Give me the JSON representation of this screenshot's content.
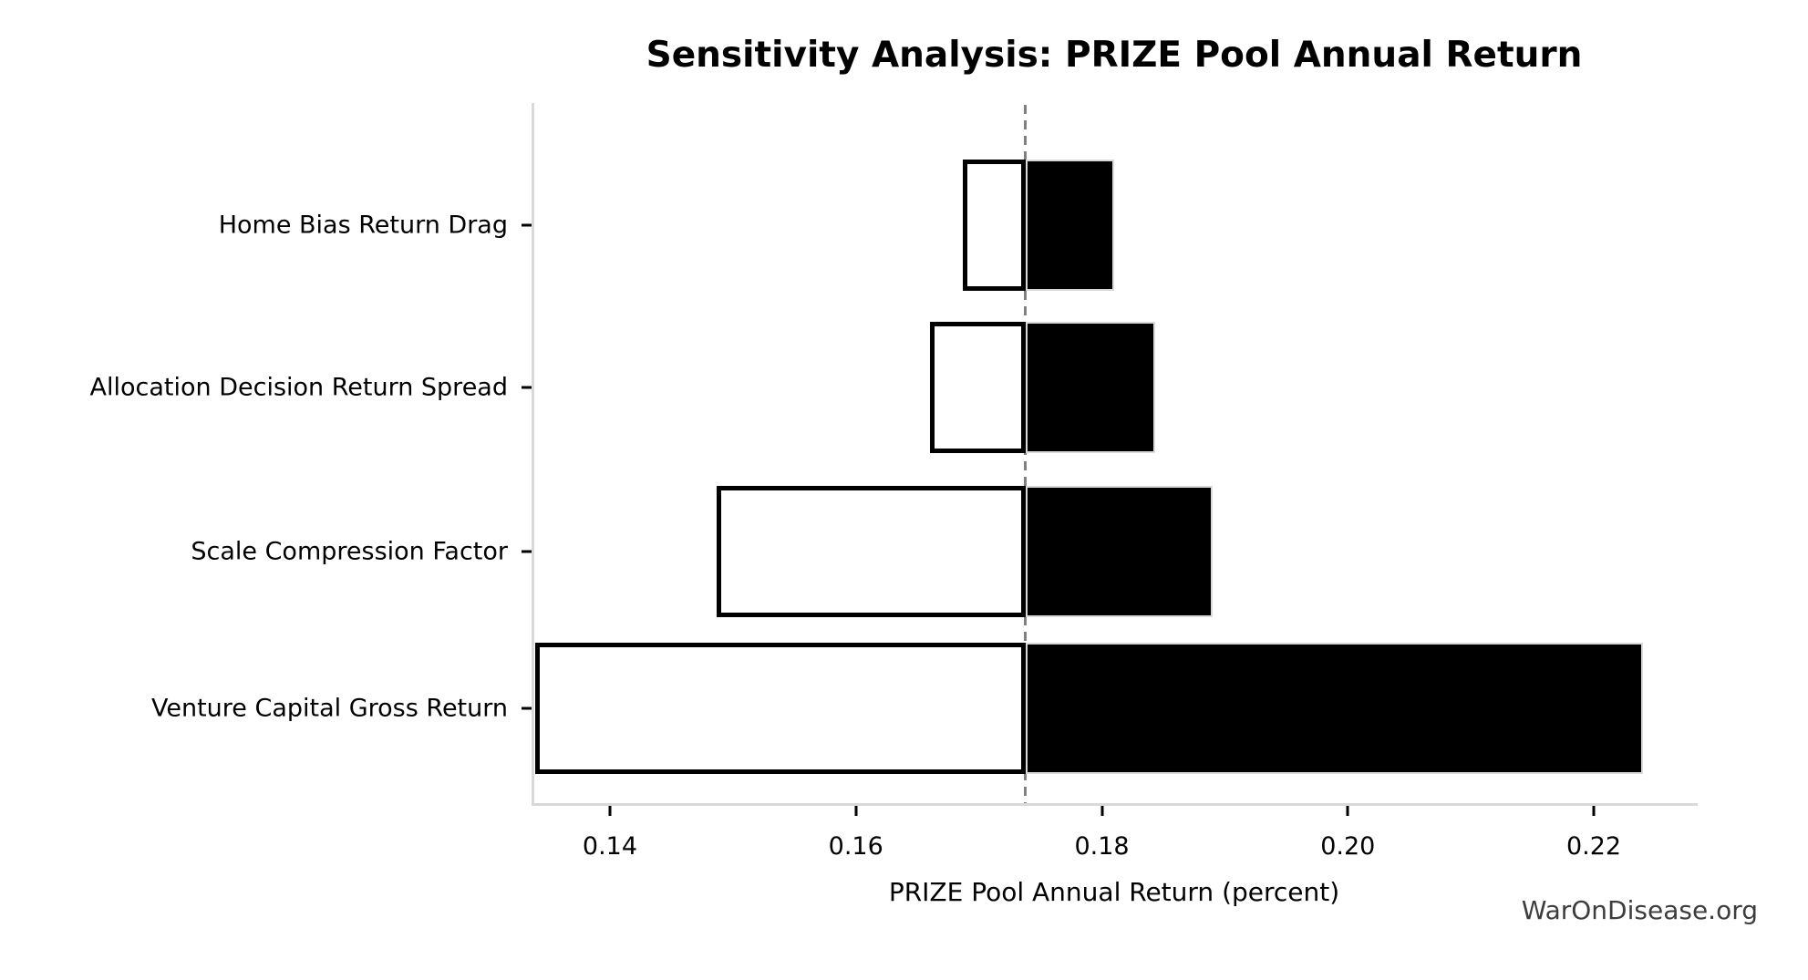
{
  "chart_data": {
    "type": "bar",
    "variant": "tornado-sensitivity",
    "title": "Sensitivity Analysis: PRIZE Pool Annual Return",
    "xlabel": "PRIZE Pool Annual Return (percent)",
    "watermark": "WarOnDisease.org",
    "categories": [
      "Home Bias Return Drag",
      "Allocation Decision Return Spread",
      "Scale Compression Factor",
      "Venture Capital Gross Return"
    ],
    "baseline": 0.1738,
    "series": [
      {
        "name": "low",
        "values": [
          0.1687,
          0.166,
          0.1487,
          0.1339
        ]
      },
      {
        "name": "high",
        "values": [
          0.181,
          0.1843,
          0.189,
          0.224
        ]
      }
    ],
    "xlim": [
      0.1337,
      0.2283
    ],
    "xticks": [
      0.14,
      0.16,
      0.18,
      0.2,
      0.22
    ],
    "xtick_labels": [
      "0.14",
      "0.16",
      "0.18",
      "0.20",
      "0.22"
    ],
    "grid": false,
    "legend": "none",
    "colors": {
      "low_bar_fill": "#ffffff",
      "low_bar_edge": "#000000",
      "high_bar_fill": "#000000",
      "high_bar_edge": "#d9d9d9",
      "baseline_line": "#808080",
      "spine": "#d9d9d9",
      "tick": "#000000",
      "watermark_text": "#3d3d3d"
    }
  }
}
